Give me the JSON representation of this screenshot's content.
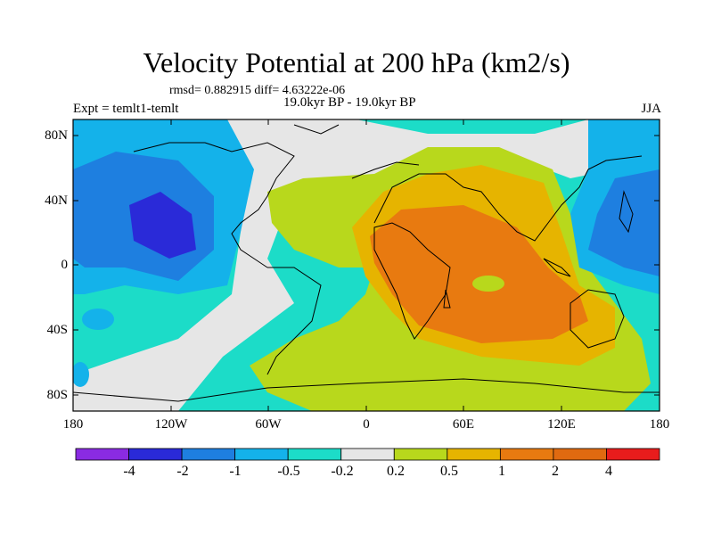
{
  "title": "Velocity Potential at 200 hPa (km2/s)",
  "stats": "rmsd= 0.882915 diff= 4.63222e-06",
  "experiment": "Expt = temlt1-temlt",
  "period": "19.0kyr BP - 19.0kyr BP",
  "season": "JJA",
  "lat_labels": [
    "80N",
    "40N",
    "0",
    "40S",
    "80S"
  ],
  "lon_labels": [
    "180",
    "120W",
    "60W",
    "0",
    "60E",
    "120E",
    "180"
  ],
  "colorbar": {
    "colors": [
      "#8a2be2",
      "#2a2ad8",
      "#1e7fe0",
      "#14b2ea",
      "#1cdcc8",
      "#e6e6e6",
      "#b8d81c",
      "#e6b400",
      "#e87a10",
      "#e06a10",
      "#e81c1c"
    ],
    "labels": [
      "-4",
      "-2",
      "-1",
      "-0.5",
      "-0.2",
      "0.2",
      "0.5",
      "1",
      "2",
      "4"
    ]
  }
}
